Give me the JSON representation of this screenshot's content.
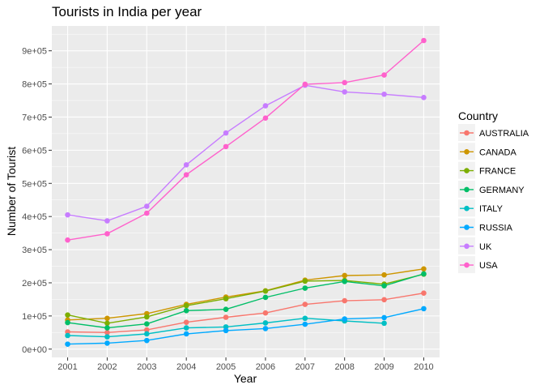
{
  "chart_data": {
    "type": "line",
    "title": "Tourists in India per year",
    "xlabel": "Year",
    "ylabel": "Number of Tourist",
    "legend_title": "Country",
    "legend_position": "right",
    "grid": true,
    "x": [
      2001,
      2002,
      2003,
      2004,
      2005,
      2006,
      2007,
      2008,
      2009,
      2010
    ],
    "xlim": [
      2000.6,
      2010.4
    ],
    "ylim": [
      -25000,
      975000
    ],
    "y_ticks": [
      0,
      100000,
      200000,
      300000,
      400000,
      500000,
      600000,
      700000,
      800000,
      900000
    ],
    "y_tick_labels": [
      "0e+00",
      "1e+05",
      "2e+05",
      "3e+05",
      "4e+05",
      "5e+05",
      "6e+05",
      "7e+05",
      "8e+05",
      "9e+05"
    ],
    "x_tick_labels": [
      "2001",
      "2002",
      "2003",
      "2004",
      "2005",
      "2006",
      "2007",
      "2008",
      "2009",
      "2010"
    ],
    "series": [
      {
        "name": "AUSTRALIA",
        "color": "#F8766D",
        "values": [
          52000,
          50000,
          58000,
          81000,
          96000,
          109000,
          135000,
          146000,
          149000,
          169000
        ]
      },
      {
        "name": "CANADA",
        "color": "#CD9600",
        "values": [
          88000,
          93000,
          107000,
          135000,
          157000,
          176000,
          208000,
          222000,
          224000,
          242000
        ]
      },
      {
        "name": "FRANCE",
        "color": "#7CAE00",
        "values": [
          103000,
          78000,
          97000,
          131000,
          152000,
          175000,
          205000,
          207000,
          196000,
          226000
        ]
      },
      {
        "name": "GERMANY",
        "color": "#00BE67",
        "values": [
          80000,
          64000,
          76000,
          116000,
          120000,
          156000,
          184000,
          204000,
          191000,
          227000
        ]
      },
      {
        "name": "ITALY",
        "color": "#00BFC4",
        "values": [
          41000,
          37000,
          46000,
          64000,
          67000,
          79000,
          93000,
          85000,
          78000,
          null
        ]
      },
      {
        "name": "RUSSIA",
        "color": "#00A9FF",
        "values": [
          15000,
          18000,
          26000,
          46000,
          56000,
          62000,
          75000,
          91000,
          95000,
          122000
        ]
      },
      {
        "name": "UK",
        "color": "#C77CFF",
        "values": [
          405000,
          387000,
          431000,
          556000,
          652000,
          734000,
          796000,
          776000,
          769000,
          759000
        ]
      },
      {
        "name": "USA",
        "color": "#FF61CC",
        "values": [
          329000,
          348000,
          410000,
          526000,
          611000,
          697000,
          799000,
          804000,
          827000,
          931000
        ]
      }
    ]
  }
}
